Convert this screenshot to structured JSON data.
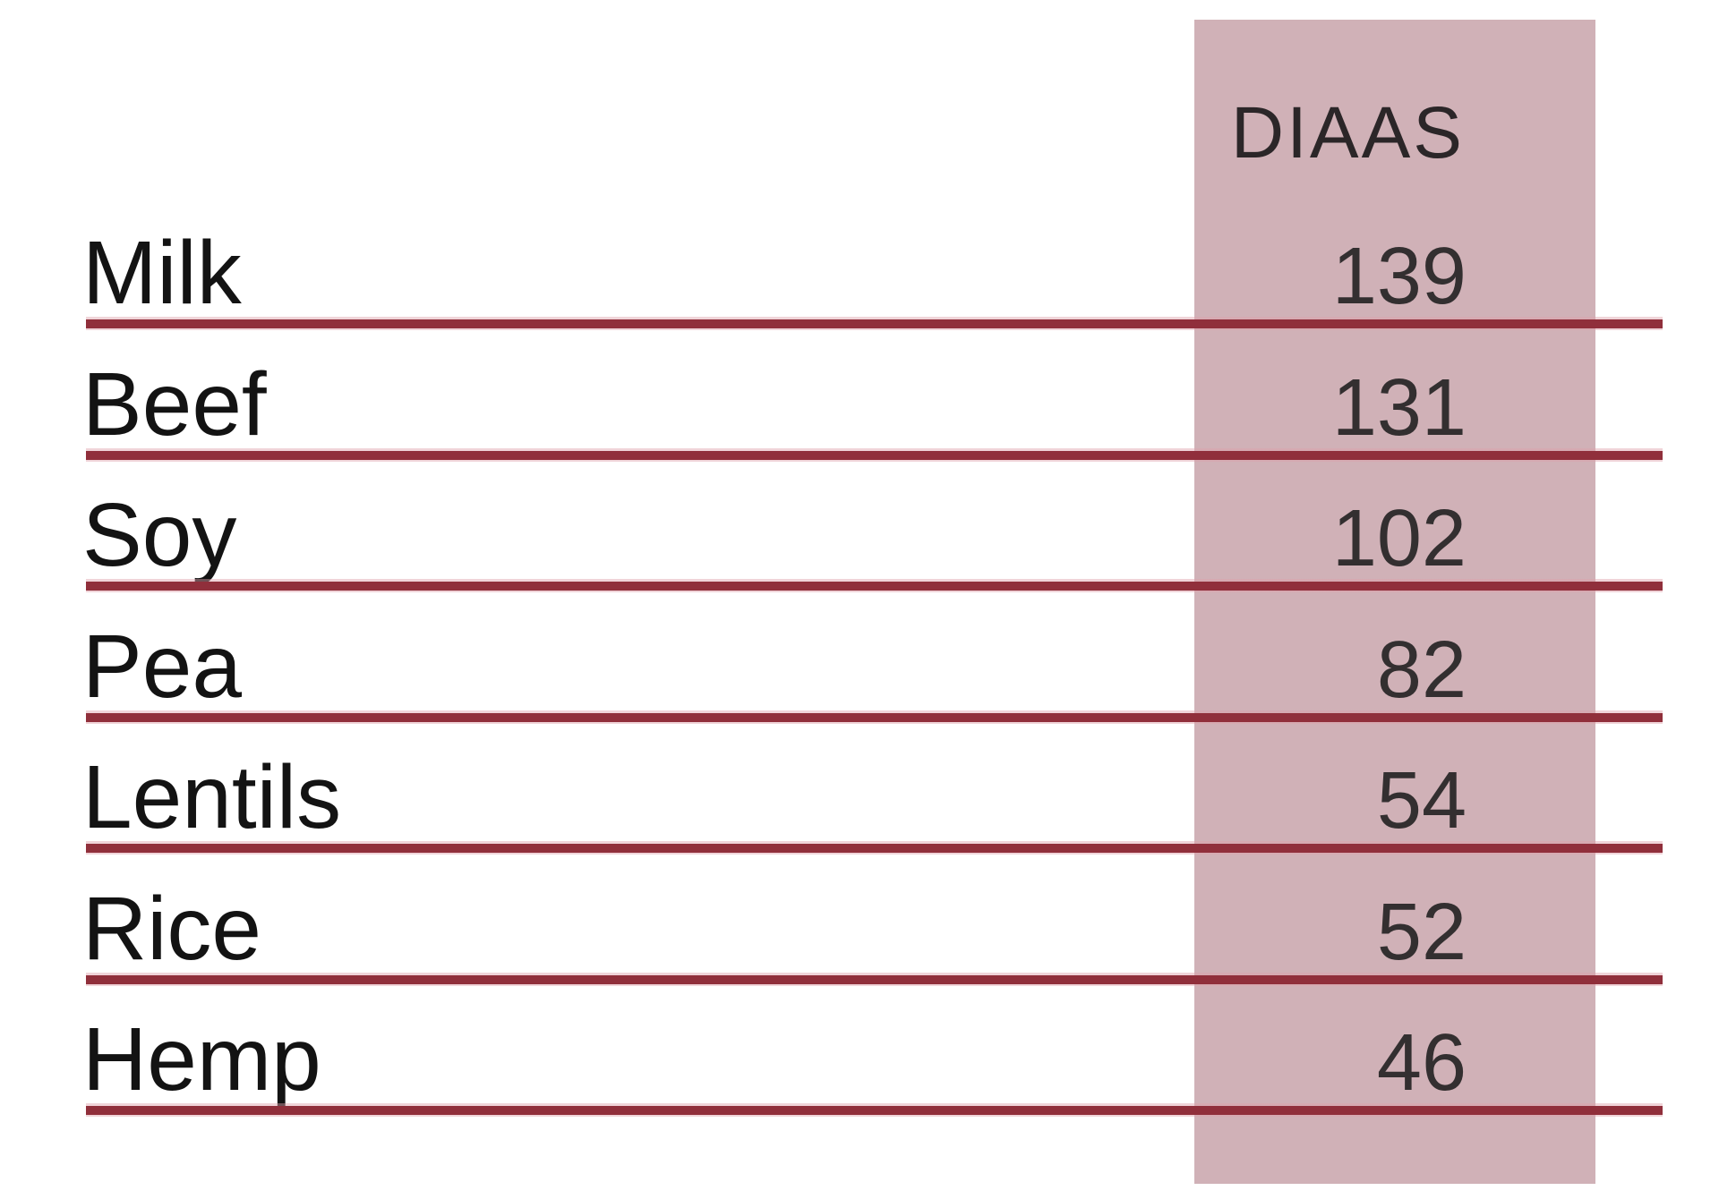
{
  "table": {
    "header": {
      "label": "DIAAS"
    },
    "rows": [
      {
        "label": "Milk",
        "value": "139"
      },
      {
        "label": "Beef",
        "value": "131"
      },
      {
        "label": "Soy",
        "value": "102"
      },
      {
        "label": "Pea",
        "value": "82"
      },
      {
        "label": "Lentils",
        "value": "54"
      },
      {
        "label": "Rice",
        "value": "52"
      },
      {
        "label": "Hemp",
        "value": "46"
      }
    ]
  },
  "colors": {
    "page_background": "#ffffff",
    "value_column_background": "#d0b1b7",
    "separator_dark": "#902f3b",
    "separator_light": "#f0d5d9",
    "label_text": "#131313",
    "value_text": "#332f30",
    "header_text": "#2b2628"
  },
  "chart_data": {
    "type": "table",
    "title": "",
    "columns": [
      "",
      "DIAAS"
    ],
    "categories": [
      "Milk",
      "Beef",
      "Soy",
      "Pea",
      "Lentils",
      "Rice",
      "Hemp"
    ],
    "values": [
      139,
      131,
      102,
      82,
      54,
      52,
      46
    ],
    "value_label": "DIAAS",
    "layout_hints": {
      "value_column_highlighted": true,
      "row_separators": "double maroon rules",
      "values_alignment": "right"
    }
  }
}
